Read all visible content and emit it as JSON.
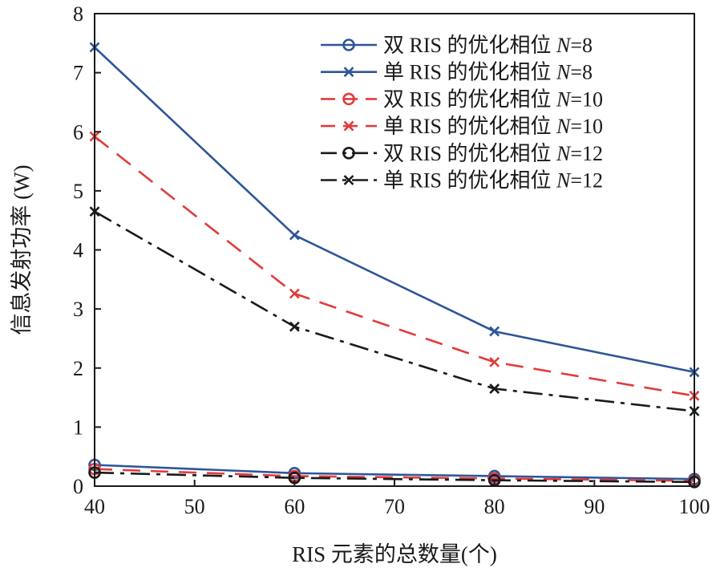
{
  "chart_data": {
    "type": "line",
    "title": "",
    "xlabel": "RIS 元素的总数量(个)",
    "ylabel": "信息发射功率 (W)",
    "xlim": [
      40,
      100
    ],
    "ylim": [
      0,
      8
    ],
    "xticks": [
      40,
      50,
      60,
      70,
      80,
      90,
      100
    ],
    "yticks": [
      0,
      1,
      2,
      3,
      4,
      5,
      6,
      7,
      8
    ],
    "grid": false,
    "legend_position": "top-right",
    "x": [
      40,
      60,
      80,
      100
    ],
    "series": [
      {
        "name": "双 RIS 的优化相位 N=8",
        "label_prefix": "双 RIS 的优化相位 ",
        "label_var": "N",
        "label_suffix": "=8",
        "color": "#2f5597",
        "dash": "solid",
        "marker": "circle",
        "values": [
          0.36,
          0.22,
          0.17,
          0.12
        ]
      },
      {
        "name": "单 RIS 的优化相位 N=8",
        "label_prefix": "单 RIS 的优化相位 ",
        "label_var": "N",
        "label_suffix": "=8",
        "color": "#2f5597",
        "dash": "solid",
        "marker": "x",
        "values": [
          7.43,
          4.25,
          2.62,
          1.93
        ]
      },
      {
        "name": "双 RIS 的优化相位 N=10",
        "label_prefix": "双 RIS 的优化相位 ",
        "label_var": "N",
        "label_suffix": "=10",
        "color": "#e03c3c",
        "dash": "dash",
        "marker": "circle",
        "values": [
          0.29,
          0.17,
          0.13,
          0.09
        ]
      },
      {
        "name": "单 RIS 的优化相位 N=10",
        "label_prefix": "单 RIS 的优化相位 ",
        "label_var": "N",
        "label_suffix": "=10",
        "color": "#e03c3c",
        "dash": "dash",
        "marker": "x",
        "values": [
          5.92,
          3.26,
          2.1,
          1.53
        ]
      },
      {
        "name": "双 RIS 的优化相位 N=12",
        "label_prefix": "双 RIS 的优化相位 ",
        "label_var": "N",
        "label_suffix": "=12",
        "color": "#1a1a1a",
        "dash": "dashdot",
        "marker": "circle",
        "values": [
          0.23,
          0.14,
          0.1,
          0.07
        ]
      },
      {
        "name": "单 RIS 的优化相位 N=12",
        "label_prefix": "单 RIS 的优化相位 ",
        "label_var": "N",
        "label_suffix": "=12",
        "color": "#1a1a1a",
        "dash": "dashdot",
        "marker": "x",
        "values": [
          4.65,
          2.7,
          1.65,
          1.27
        ]
      }
    ]
  }
}
